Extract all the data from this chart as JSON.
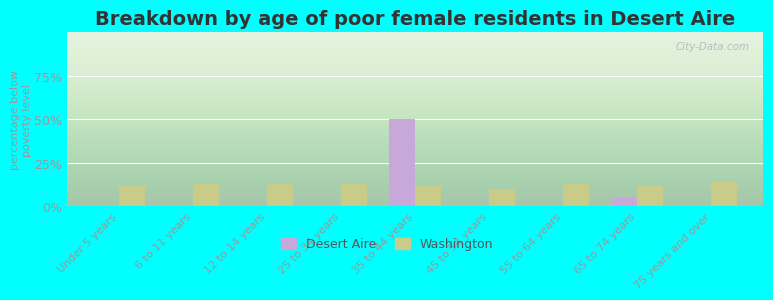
{
  "title": "Breakdown by age of poor female residents in Desert Aire",
  "categories": [
    "Under 5 years",
    "6 to 11 years",
    "12 to 14 years",
    "25 to 34 years",
    "35 to 44 years",
    "45 to 54 years",
    "55 to 64 years",
    "65 to 74 years",
    "75 years and over"
  ],
  "desert_aire": [
    0,
    0,
    0,
    0,
    50,
    0,
    0,
    5,
    0
  ],
  "washington": [
    12,
    13,
    13,
    13,
    12,
    10,
    13,
    12,
    14
  ],
  "desert_aire_color": "#c8a8d8",
  "washington_color": "#c8cc88",
  "plot_bg_color": "#dff0d8",
  "ylabel": "percentage below\npoverty level",
  "ylim": [
    0,
    100
  ],
  "yticks": [
    0,
    25,
    50,
    75
  ],
  "ytick_labels": [
    "0%",
    "25%",
    "50%",
    "75%"
  ],
  "bg_color": "#00ffff",
  "title_fontsize": 14,
  "tick_color": "#999999",
  "legend_desert_aire": "Desert Aire",
  "legend_washington": "Washington",
  "watermark": "City-Data.com"
}
